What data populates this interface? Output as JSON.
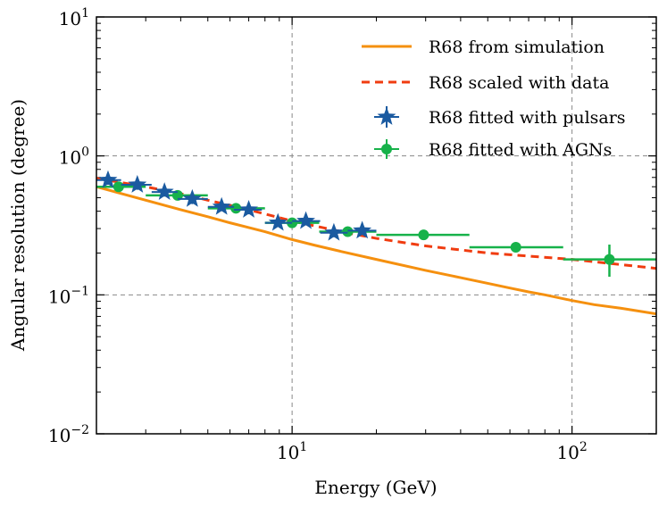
{
  "chart_data": {
    "type": "line",
    "title": "",
    "xlabel": "Energy (GeV)",
    "ylabel": "Angular resolution (degree)",
    "xscale": "log",
    "yscale": "log",
    "xlim": [
      2,
      200
    ],
    "ylim": [
      0.01,
      10
    ],
    "x_ticks": [
      {
        "value": 10,
        "base": "10",
        "exp": "1"
      },
      {
        "value": 100,
        "base": "10",
        "exp": "2"
      }
    ],
    "y_ticks": [
      {
        "value": 0.01,
        "base": "10",
        "exp": "−2"
      },
      {
        "value": 0.1,
        "base": "10",
        "exp": "−1"
      },
      {
        "value": 1,
        "base": "10",
        "exp": "0"
      },
      {
        "value": 10,
        "base": "10",
        "exp": "1"
      }
    ],
    "grid": "dashed at major decades",
    "legend_position": "top-right",
    "colors": {
      "simulation": "#f5900f",
      "scaled": "#f03c10",
      "pulsars": "#1a5aa0",
      "agns": "#17b24a"
    },
    "series": [
      {
        "name": "R68 from simulation",
        "style": "solid",
        "x": [
          2,
          2.5,
          3,
          4,
          5,
          6,
          7,
          8,
          10,
          12,
          15,
          20,
          30,
          40,
          50,
          60,
          70,
          80,
          100,
          120,
          150,
          200
        ],
        "y": [
          0.6,
          0.53,
          0.48,
          0.41,
          0.365,
          0.33,
          0.305,
          0.285,
          0.25,
          0.228,
          0.205,
          0.18,
          0.15,
          0.133,
          0.121,
          0.112,
          0.105,
          0.1,
          0.091,
          0.085,
          0.08,
          0.073
        ]
      },
      {
        "name": "R68 scaled with data",
        "style": "dashed",
        "x": [
          2,
          3,
          4,
          5,
          7,
          10,
          15,
          20,
          30,
          50,
          70,
          100,
          150,
          200
        ],
        "y": [
          0.69,
          0.6,
          0.535,
          0.48,
          0.41,
          0.34,
          0.285,
          0.255,
          0.225,
          0.2,
          0.19,
          0.18,
          0.165,
          0.155
        ]
      },
      {
        "name": "R68 fitted with pulsars",
        "marker": "star",
        "points": [
          {
            "x": 2.2,
            "y": 0.67,
            "xerr": [
              2.0,
              2.45
            ],
            "yerr": [
              0.62,
              0.72
            ]
          },
          {
            "x": 2.8,
            "y": 0.62,
            "xerr": [
              2.45,
              3.15
            ],
            "yerr": [
              0.57,
              0.67
            ]
          },
          {
            "x": 3.5,
            "y": 0.55,
            "xerr": [
              3.15,
              3.9
            ],
            "yerr": [
              0.51,
              0.6
            ]
          },
          {
            "x": 4.4,
            "y": 0.49,
            "xerr": [
              3.9,
              5.0
            ],
            "yerr": [
              0.45,
              0.53
            ]
          },
          {
            "x": 5.6,
            "y": 0.43,
            "xerr": [
              5.0,
              6.2
            ],
            "yerr": [
              0.4,
              0.46
            ]
          },
          {
            "x": 7.0,
            "y": 0.41,
            "xerr": [
              6.2,
              7.8
            ],
            "yerr": [
              0.38,
              0.44
            ]
          },
          {
            "x": 8.9,
            "y": 0.33,
            "xerr": [
              8.0,
              10.0
            ],
            "yerr": [
              0.31,
              0.35
            ]
          },
          {
            "x": 11.2,
            "y": 0.34,
            "xerr": [
              10.0,
              12.6
            ],
            "yerr": [
              0.32,
              0.36
            ]
          },
          {
            "x": 14.1,
            "y": 0.28,
            "xerr": [
              12.6,
              15.8
            ],
            "yerr": [
              0.26,
              0.3
            ]
          },
          {
            "x": 17.8,
            "y": 0.29,
            "xerr": [
              15.8,
              20.0
            ],
            "yerr": [
              0.27,
              0.31
            ]
          }
        ]
      },
      {
        "name": "R68 fitted with AGNs",
        "marker": "circle",
        "points": [
          {
            "x": 2.4,
            "y": 0.6,
            "xerr": [
              2.0,
              3.0
            ],
            "yerr": [
              0.57,
              0.63
            ]
          },
          {
            "x": 3.9,
            "y": 0.52,
            "xerr": [
              3.0,
              5.0
            ],
            "yerr": [
              0.5,
              0.54
            ]
          },
          {
            "x": 6.3,
            "y": 0.42,
            "xerr": [
              5.0,
              8.0
            ],
            "yerr": [
              0.4,
              0.44
            ]
          },
          {
            "x": 10.0,
            "y": 0.33,
            "xerr": [
              8.0,
              12.5
            ],
            "yerr": [
              0.31,
              0.35
            ]
          },
          {
            "x": 15.8,
            "y": 0.285,
            "xerr": [
              12.5,
              20.0
            ],
            "yerr": [
              0.27,
              0.3
            ]
          },
          {
            "x": 29.5,
            "y": 0.27,
            "xerr": [
              20.0,
              43.0
            ],
            "yerr": [
              0.255,
              0.285
            ]
          },
          {
            "x": 63.0,
            "y": 0.22,
            "xerr": [
              43.0,
              93.0
            ],
            "yerr": [
              0.205,
              0.235
            ]
          },
          {
            "x": 136.0,
            "y": 0.18,
            "xerr": [
              93.0,
              200.0
            ],
            "yerr": [
              0.135,
              0.23
            ]
          }
        ]
      }
    ]
  }
}
